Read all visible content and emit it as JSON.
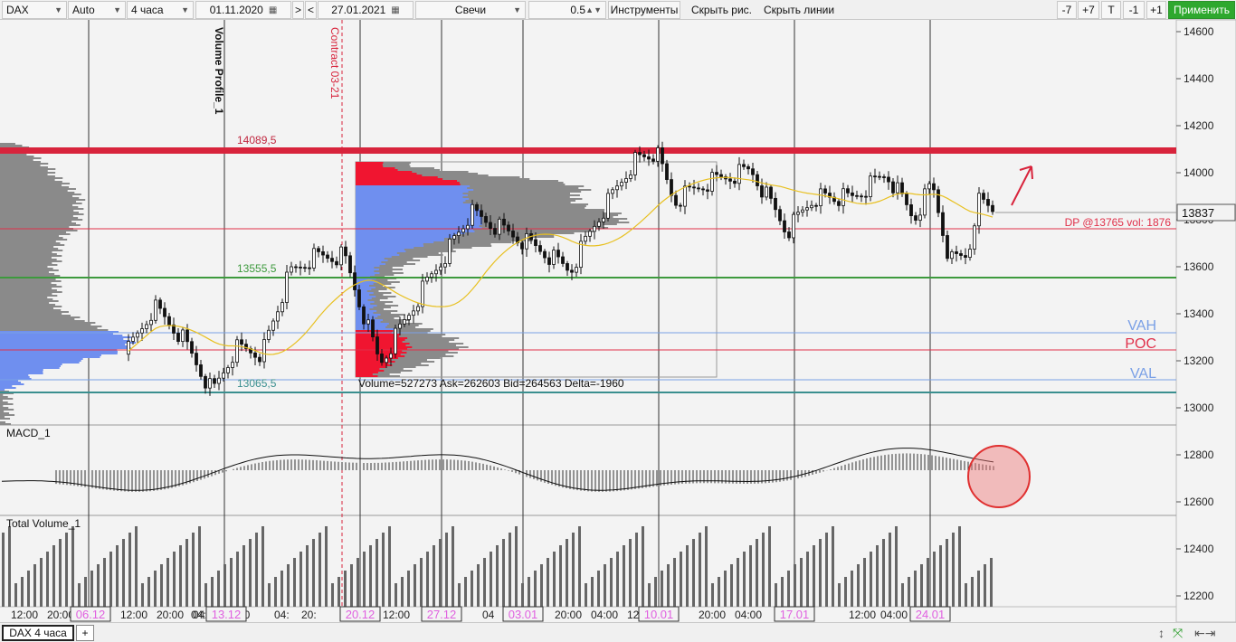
{
  "toolbar": {
    "symbol": "DAX",
    "scale": "Auto",
    "timeframe": "4 часа",
    "date_from": "01.11.2020",
    "nav_fwd": ">",
    "nav_back": "<",
    "date_to": "27.01.2021",
    "chart_type": "Свечи",
    "step": "0.5",
    "tools": "Инструменты",
    "hide_drawings": "Скрыть рис.",
    "hide_lines": "Скрыть линии",
    "btn_m7": "-7",
    "btn_p7": "+7",
    "btn_t": "T",
    "btn_m1": "-1",
    "btn_p1": "+1",
    "apply": "Применить"
  },
  "chart": {
    "price_labels": [
      "14600",
      "14400",
      "14200",
      "14000",
      "13800",
      "13600",
      "13400",
      "13200",
      "13000",
      "12800",
      "12600",
      "12400",
      "12200"
    ],
    "current_price": "13837",
    "level_14089": "14089,5",
    "level_13555": "13555,5",
    "level_13065": "13065,5",
    "dp_label": "DP @13765 vol: 1876",
    "vah": "VAH",
    "poc": "POC",
    "val": "VAL",
    "volume_profile_label": "Volume Profile_1",
    "contract_label": "Contract 03-21",
    "profile_stats": "Volume=527273  Ask=262603  Bid=264563  Delta=-1960",
    "macd_label": "MACD_1",
    "total_volume_label": "Total Volume_1",
    "time_labels": [
      "12:00",
      "20:00",
      "04:",
      "12:00",
      "20:00",
      "04:00",
      "00",
      "04:",
      "20:",
      "12:00",
      "20:00",
      "04",
      "20:00",
      "04:00",
      "12:00",
      "20:00",
      "04:00",
      "12:00",
      "04:00"
    ],
    "date_labels": [
      "06.12",
      "13.12",
      "20.12",
      "27.12",
      "03.01",
      "10.01",
      "17.01",
      "24.01"
    ],
    "colors": {
      "resistance": "#d8243c",
      "support": "#3d9a3d",
      "low_line": "#3a8f8f",
      "poc": "#e0304a",
      "vah_val": "#7aa0e6",
      "profile_gray": "#8a8a8a",
      "profile_blue": "#6f8fef",
      "profile_red": "#f01530",
      "sma": "#e8c020",
      "apply_green": "#2ea82e"
    }
  },
  "tabs": {
    "active": "DAX 4 часа",
    "add": "+"
  },
  "icons": [
    "calendar-icon",
    "chevron-down-icon",
    "arrows-vertical-icon",
    "fullscreen-icon",
    "arrows-horizontal-icon"
  ]
}
